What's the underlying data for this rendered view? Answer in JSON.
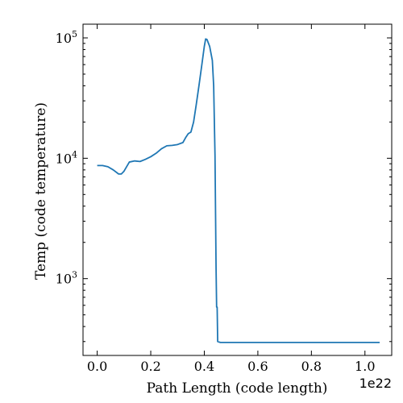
{
  "chart_data": {
    "type": "line",
    "title": "",
    "xlabel": "Path Length  (code length)",
    "ylabel": "Temp  (code temperature)",
    "x_offset_label": "1e22",
    "xscale": "linear",
    "yscale": "log",
    "xlim": [
      -0.053,
      1.1
    ],
    "ylim": [
      230,
      130000
    ],
    "grid": false,
    "line_color": "#1f77b4",
    "x_ticks": [
      {
        "value": 0.0,
        "label": "0.0"
      },
      {
        "value": 0.2,
        "label": "0.2"
      },
      {
        "value": 0.4,
        "label": "0.4"
      },
      {
        "value": 0.6,
        "label": "0.6"
      },
      {
        "value": 0.8,
        "label": "0.8"
      },
      {
        "value": 1.0,
        "label": "1.0"
      }
    ],
    "y_ticks": [
      {
        "value": 1000,
        "base": "10",
        "exp": "3"
      },
      {
        "value": 10000,
        "base": "10",
        "exp": "4"
      },
      {
        "value": 100000,
        "base": "10",
        "exp": "5"
      }
    ],
    "series": [
      {
        "x": [
          0.0,
          0.02,
          0.04,
          0.06,
          0.08,
          0.09,
          0.1,
          0.12,
          0.14,
          0.16,
          0.18,
          0.2,
          0.22,
          0.24,
          0.26,
          0.28,
          0.3,
          0.32,
          0.33,
          0.34,
          0.35,
          0.36,
          0.37,
          0.38,
          0.39,
          0.4,
          0.405,
          0.41,
          0.42,
          0.43,
          0.435,
          0.44,
          0.442,
          0.444,
          0.446,
          0.448,
          0.45,
          0.46,
          0.6,
          0.8,
          1.0,
          1.055
        ],
        "y": [
          8700,
          8700,
          8500,
          8000,
          7400,
          7400,
          7800,
          9300,
          9500,
          9400,
          9800,
          10300,
          11000,
          12000,
          12700,
          12800,
          13000,
          13500,
          14800,
          16000,
          16500,
          20000,
          28000,
          40000,
          58000,
          85000,
          98000,
          97000,
          85000,
          65000,
          40000,
          10500,
          3500,
          1200,
          580,
          580,
          300,
          295,
          295,
          295,
          295,
          295
        ]
      }
    ]
  }
}
